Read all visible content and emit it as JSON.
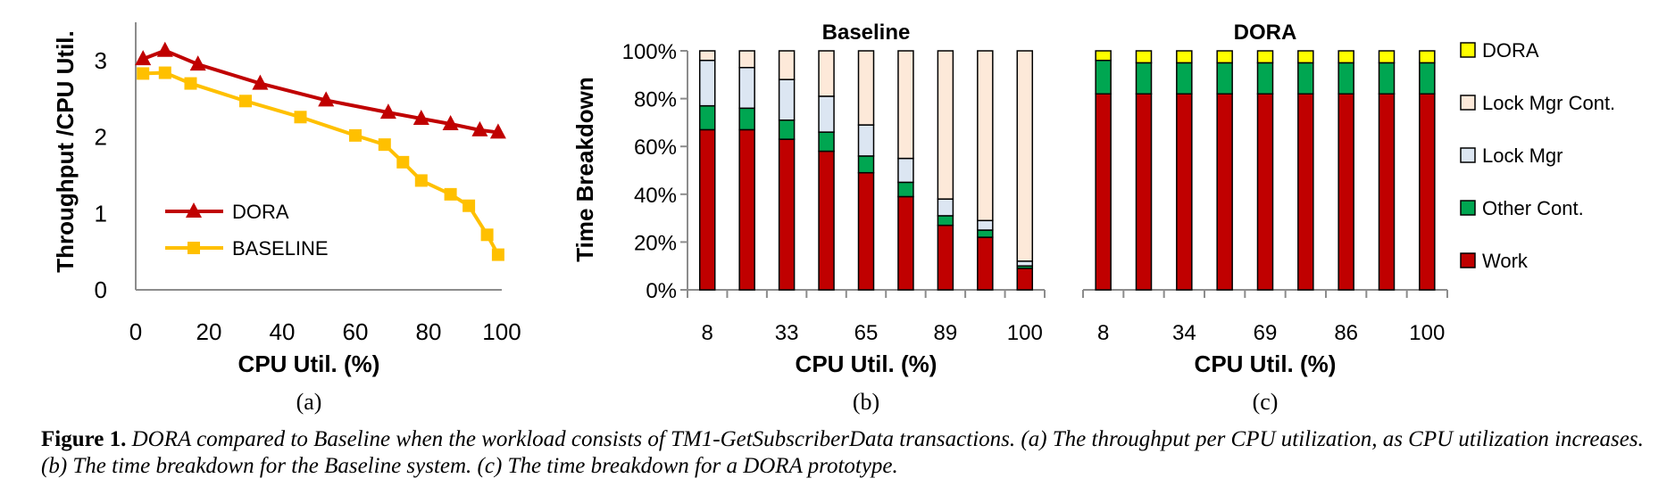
{
  "colors": {
    "dora_line": "#c00000",
    "baseline_line": "#ffc000",
    "work": "#c00000",
    "other_cont": "#00a651",
    "lock_mgr": "#dce6f2",
    "lock_mgr_cont": "#fde9d9",
    "dora": "#ffff00"
  },
  "caption": {
    "label": "Figure 1.",
    "text": "DORA compared to Baseline when the workload consists of TM1-GetSubscriberData transactions. (a) The throughput per CPU utilization, as CPU utilization increases. (b) The time breakdown for the Baseline system. (c) The time breakdown for a DORA prototype."
  },
  "chart_data": [
    {
      "id": "a",
      "type": "line",
      "panel_label": "(a)",
      "title": "",
      "xlabel": "CPU Util. (%)",
      "ylabel": "Throughput /CPU Util.",
      "xlim": [
        0,
        100
      ],
      "ylim": [
        0,
        3.5
      ],
      "xticks": [
        0,
        20,
        40,
        60,
        80,
        100
      ],
      "yticks": [
        0,
        1,
        2,
        3
      ],
      "grid": false,
      "legend_position": "bottom-left",
      "series": [
        {
          "name": "DORA",
          "marker": "triangle",
          "x": [
            2,
            8,
            17,
            34,
            52,
            69,
            78,
            86,
            94,
            99
          ],
          "y": [
            3.02,
            3.13,
            2.95,
            2.7,
            2.48,
            2.32,
            2.24,
            2.17,
            2.09,
            2.06
          ]
        },
        {
          "name": "BASELINE",
          "marker": "x-square",
          "x": [
            2,
            8,
            15,
            30,
            45,
            60,
            68,
            73,
            78,
            86,
            91,
            96,
            99
          ],
          "y": [
            2.83,
            2.84,
            2.7,
            2.47,
            2.26,
            2.02,
            1.9,
            1.67,
            1.43,
            1.25,
            1.1,
            0.72,
            0.46
          ]
        }
      ]
    },
    {
      "id": "b",
      "type": "bar",
      "stacked": true,
      "panel_label": "(b)",
      "title": "Baseline",
      "xlabel": "CPU Util. (%)",
      "ylabel": "Time Breakdown",
      "ylim": [
        0,
        100
      ],
      "yticks": [
        "0%",
        "20%",
        "40%",
        "60%",
        "80%",
        "100%"
      ],
      "x_tick_labels": [
        "8",
        "",
        "33",
        "",
        "65",
        "",
        "89",
        "",
        "100"
      ],
      "grid": false,
      "series": [
        {
          "name": "Work",
          "color_key": "work",
          "values": [
            67,
            67,
            63,
            58,
            49,
            39,
            27,
            22,
            9
          ]
        },
        {
          "name": "Other Cont.",
          "color_key": "other_cont",
          "values": [
            10,
            9,
            8,
            8,
            7,
            6,
            4,
            3,
            1
          ]
        },
        {
          "name": "Lock Mgr",
          "color_key": "lock_mgr",
          "values": [
            19,
            17,
            17,
            15,
            13,
            10,
            7,
            4,
            2
          ]
        },
        {
          "name": "Lock Mgr Cont.",
          "color_key": "lock_mgr_cont",
          "values": [
            4,
            7,
            12,
            19,
            31,
            45,
            62,
            71,
            88
          ]
        }
      ]
    },
    {
      "id": "c",
      "type": "bar",
      "stacked": true,
      "panel_label": "(c)",
      "title": "DORA",
      "xlabel": "CPU Util. (%)",
      "ylabel": "",
      "ylim": [
        0,
        100
      ],
      "x_tick_labels": [
        "8",
        "",
        "34",
        "",
        "69",
        "",
        "86",
        "",
        "100"
      ],
      "grid": false,
      "legend_position": "right",
      "legend": [
        "DORA",
        "Lock Mgr Cont.",
        "Lock Mgr",
        "Other Cont.",
        "Work"
      ],
      "series": [
        {
          "name": "Work",
          "color_key": "work",
          "values": [
            82,
            82,
            82,
            82,
            82,
            82,
            82,
            82,
            82
          ]
        },
        {
          "name": "Other Cont.",
          "color_key": "other_cont",
          "values": [
            14,
            13,
            13,
            13,
            13,
            13,
            13,
            13,
            13
          ]
        },
        {
          "name": "Lock Mgr",
          "color_key": "lock_mgr",
          "values": [
            0,
            0,
            0,
            0,
            0,
            0,
            0,
            0,
            0
          ]
        },
        {
          "name": "Lock Mgr Cont.",
          "color_key": "lock_mgr_cont",
          "values": [
            0,
            0,
            0,
            0,
            0,
            0,
            0,
            0,
            0
          ]
        },
        {
          "name": "DORA",
          "color_key": "dora",
          "values": [
            4,
            5,
            5,
            5,
            5,
            5,
            5,
            5,
            5
          ]
        }
      ]
    }
  ]
}
